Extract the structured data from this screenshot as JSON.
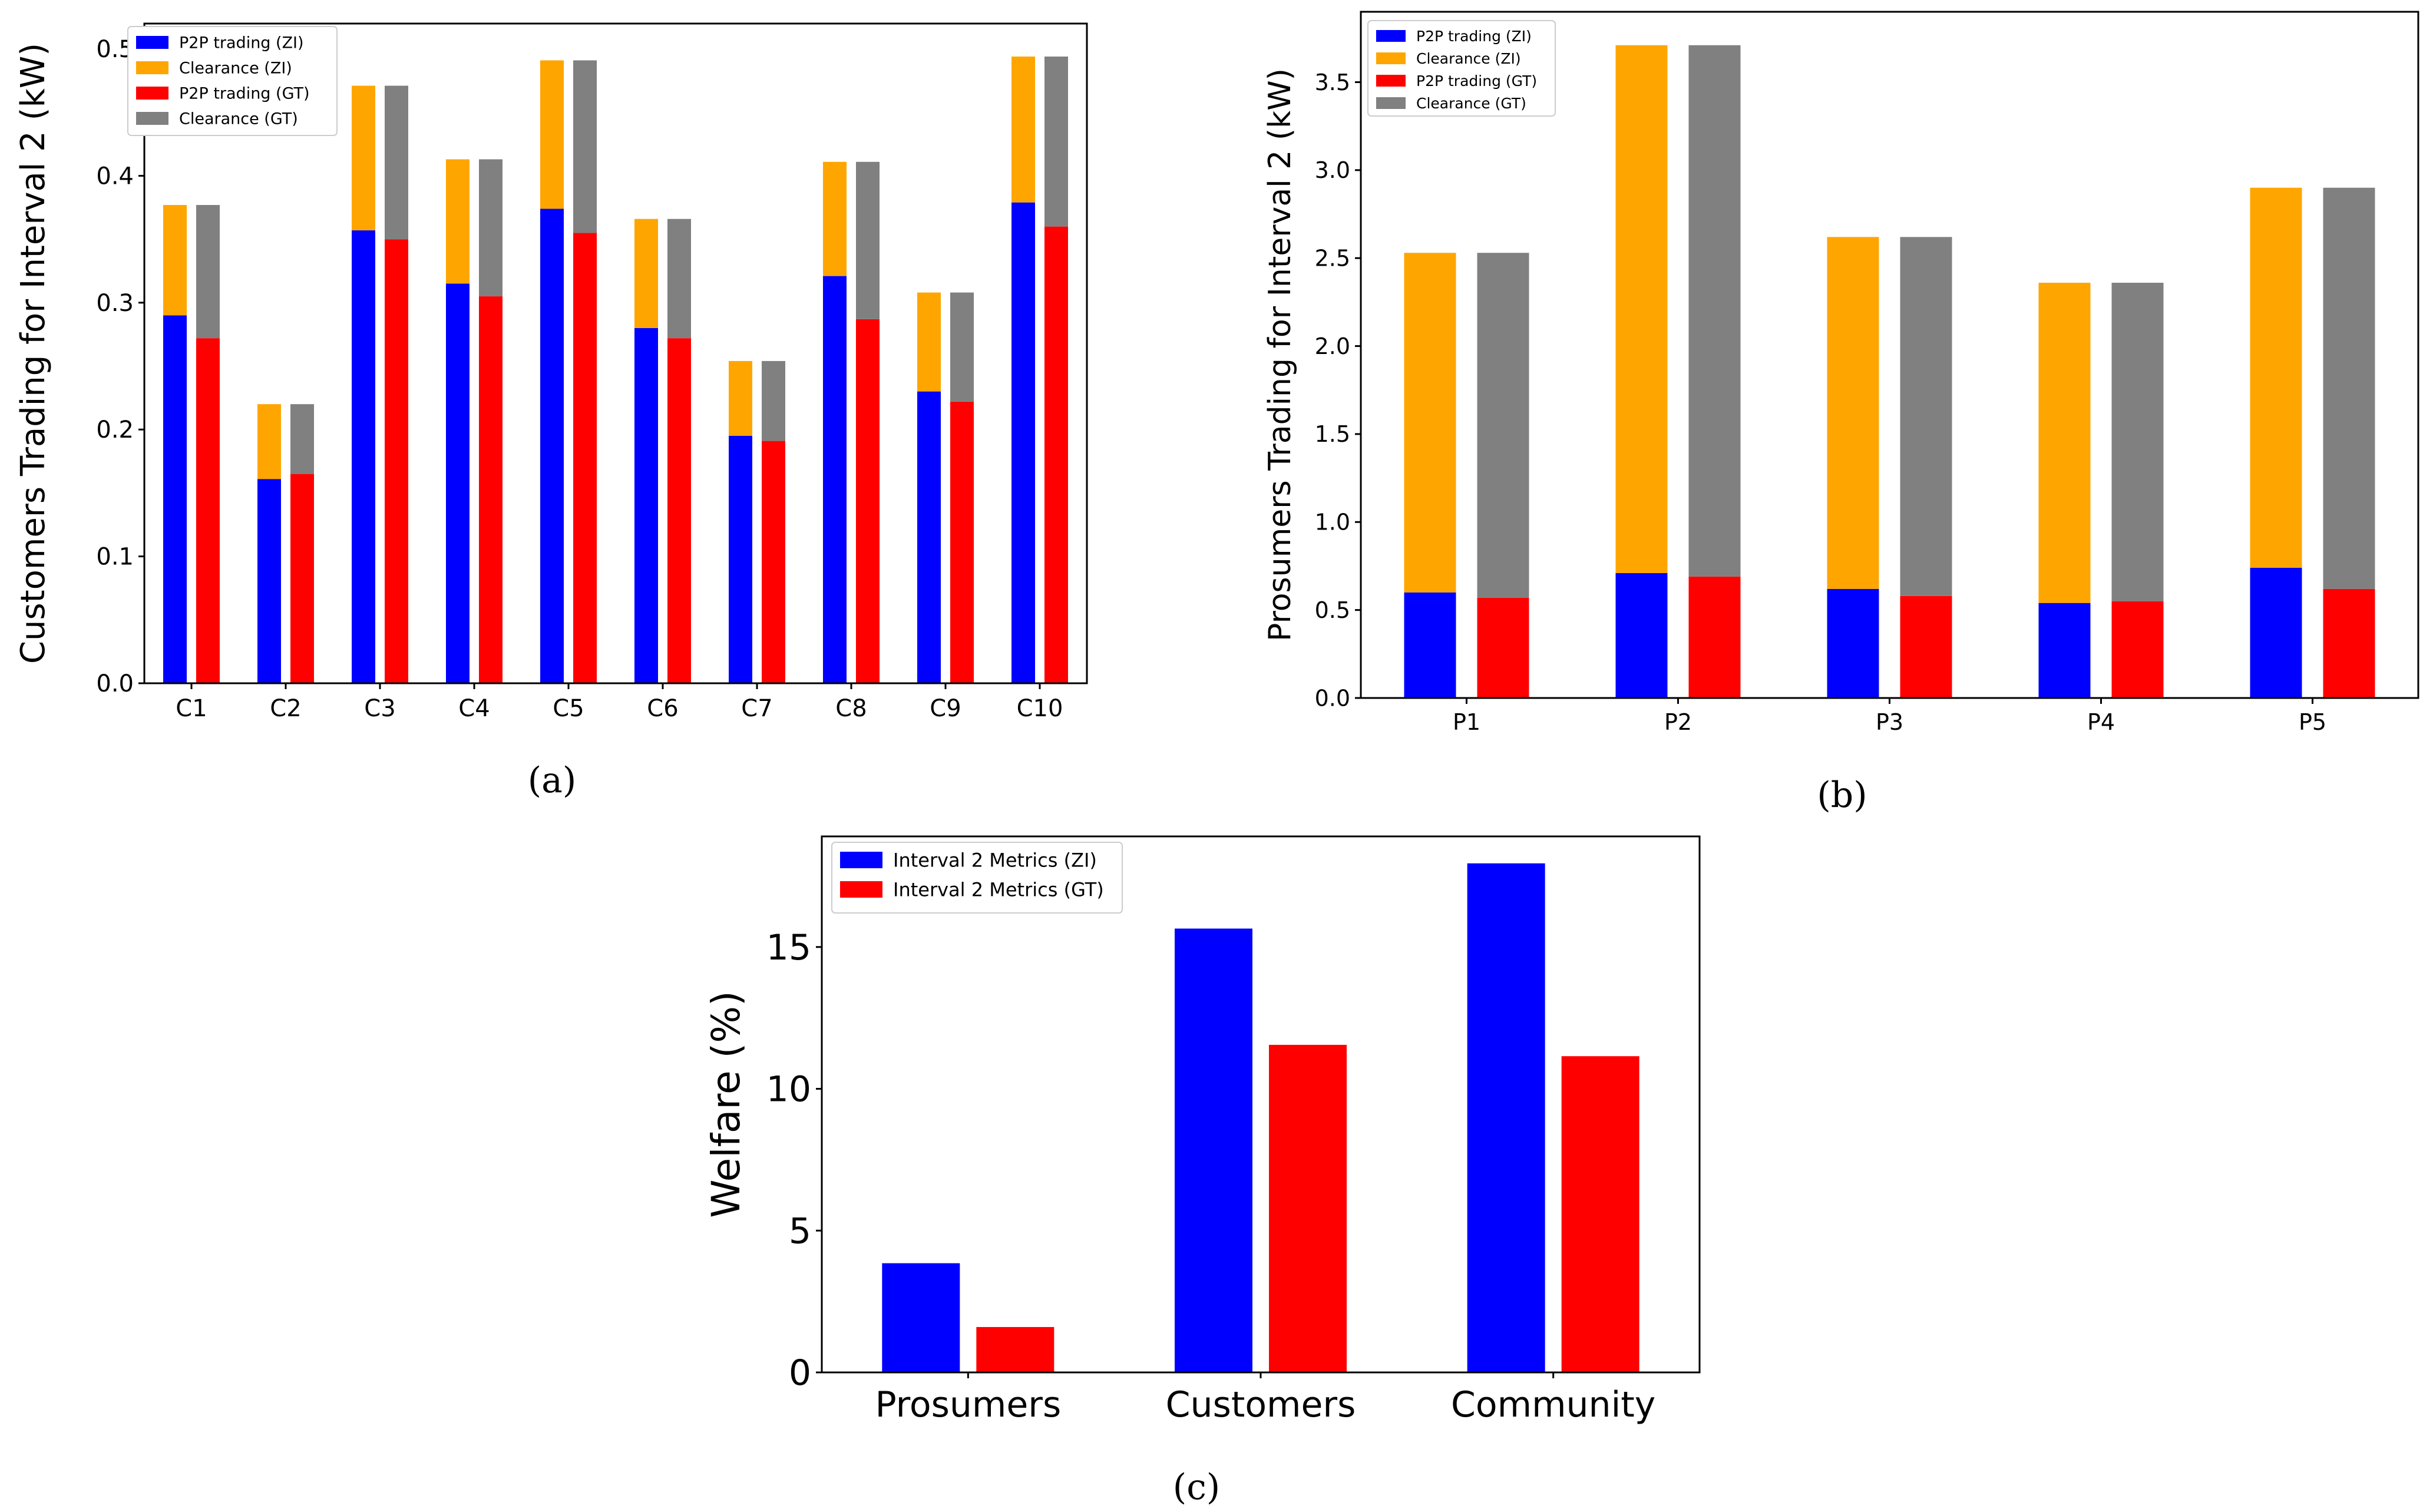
{
  "panels": {
    "a": "(a)",
    "b": "(b)",
    "c": "(c)"
  },
  "colors": {
    "p2p_zi": "#0000ff",
    "clearance_zi": "#ffa500",
    "p2p_gt": "#ff0000",
    "clearance_gt": "#808080"
  },
  "chart_data": [
    {
      "id": "a",
      "type": "bar",
      "stacked": true,
      "ylabel": "Customers Trading for Interval 2 (kW)",
      "ylim": [
        0,
        0.52
      ],
      "yticks": [
        "0.0",
        "0.1",
        "0.2",
        "0.3",
        "0.4",
        "0.5"
      ],
      "legend_position": "top-left",
      "categories": [
        "C1",
        "C2",
        "C3",
        "C4",
        "C5",
        "C6",
        "C7",
        "C8",
        "C9",
        "C10"
      ],
      "series": [
        {
          "name": "P2P trading (ZI)",
          "group": "ZI",
          "color": "#0000ff",
          "values": [
            0.29,
            0.161,
            0.357,
            0.315,
            0.374,
            0.28,
            0.195,
            0.321,
            0.23,
            0.379
          ]
        },
        {
          "name": "Clearance (ZI)",
          "group": "ZI",
          "color": "#ffa500",
          "values": [
            0.087,
            0.059,
            0.114,
            0.098,
            0.117,
            0.086,
            0.059,
            0.09,
            0.078,
            0.115
          ]
        },
        {
          "name": "P2P trading (GT)",
          "group": "GT",
          "color": "#ff0000",
          "values": [
            0.272,
            0.165,
            0.35,
            0.305,
            0.355,
            0.272,
            0.191,
            0.287,
            0.222,
            0.36
          ]
        },
        {
          "name": "Clearance (GT)",
          "group": "GT",
          "color": "#808080",
          "values": [
            0.105,
            0.055,
            0.121,
            0.108,
            0.136,
            0.094,
            0.063,
            0.124,
            0.086,
            0.134
          ]
        }
      ]
    },
    {
      "id": "b",
      "type": "bar",
      "stacked": true,
      "ylabel": "Prosumers Trading for Interval 2 (kW)",
      "ylim": [
        0,
        3.9
      ],
      "yticks": [
        "0.0",
        "0.5",
        "1.0",
        "1.5",
        "2.0",
        "2.5",
        "3.0",
        "3.5"
      ],
      "legend_position": "top-left",
      "categories": [
        "P1",
        "P2",
        "P3",
        "P4",
        "P5"
      ],
      "series": [
        {
          "name": "P2P trading (ZI)",
          "group": "ZI",
          "color": "#0000ff",
          "values": [
            0.6,
            0.71,
            0.62,
            0.54,
            0.74
          ]
        },
        {
          "name": "Clearance (ZI)",
          "group": "ZI",
          "color": "#ffa500",
          "values": [
            1.93,
            3.0,
            2.0,
            1.82,
            2.16
          ]
        },
        {
          "name": "P2P trading (GT)",
          "group": "GT",
          "color": "#ff0000",
          "values": [
            0.57,
            0.69,
            0.58,
            0.55,
            0.62
          ]
        },
        {
          "name": "Clearance (GT)",
          "group": "GT",
          "color": "#808080",
          "values": [
            1.96,
            3.02,
            2.04,
            1.81,
            2.28
          ]
        }
      ]
    },
    {
      "id": "c",
      "type": "bar",
      "stacked": false,
      "ylabel": "Welfare (%)",
      "ylim": [
        0,
        18.9
      ],
      "yticks": [
        "0",
        "5",
        "10",
        "15"
      ],
      "legend_position": "top-left",
      "categories": [
        "Prosumers",
        "Customers",
        "Community"
      ],
      "series": [
        {
          "name": "Interval 2 Metrics (ZI)",
          "color": "#0000ff",
          "values": [
            3.85,
            15.65,
            17.95
          ]
        },
        {
          "name": "Interval 2 Metrics (GT)",
          "color": "#ff0000",
          "values": [
            1.6,
            11.55,
            11.15
          ]
        }
      ]
    }
  ]
}
